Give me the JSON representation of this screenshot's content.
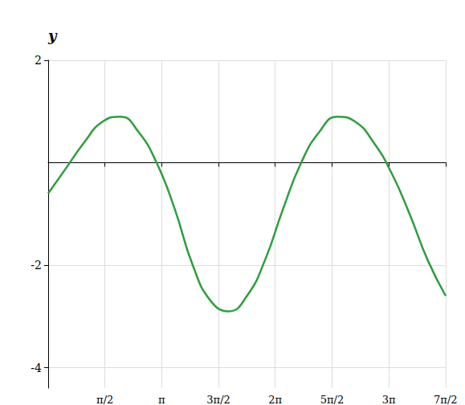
{
  "chart_data": {
    "type": "line",
    "y_label": "y",
    "x": [
      0,
      0.5,
      1,
      1.5,
      2,
      2.5,
      3,
      3.5,
      4,
      4.5,
      5,
      5.5,
      6,
      6.5,
      7,
      7.5,
      8,
      8.5,
      9,
      9.5,
      10,
      10.5,
      11
    ],
    "values": [
      -0.6,
      -0.1,
      0.4,
      0.8,
      0.9,
      0.6,
      0.0,
      -0.9,
      -2.0,
      -2.7,
      -2.9,
      -2.6,
      -1.9,
      -0.9,
      0.0,
      0.6,
      0.9,
      0.8,
      0.4,
      -0.2,
      -1.0,
      -1.9,
      -2.6
    ],
    "color": "#2e9e3e",
    "xlim": [
      0,
      11
    ],
    "xticks": [
      {
        "value": 1.5708,
        "label": "π/2"
      },
      {
        "value": 3.1416,
        "label": "π"
      },
      {
        "value": 4.7124,
        "label": "3π/2"
      },
      {
        "value": 6.2832,
        "label": "2π"
      },
      {
        "value": 7.854,
        "label": "5π/2"
      },
      {
        "value": 9.4248,
        "label": "3π"
      },
      {
        "value": 10.9956,
        "label": "7π/2"
      }
    ],
    "ylim": [
      -4.4,
      2
    ],
    "yticks": [
      -4,
      -2,
      2
    ],
    "grid": true
  }
}
